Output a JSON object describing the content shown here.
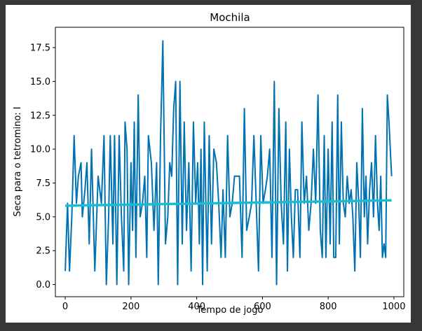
{
  "chart_data": {
    "type": "line",
    "title": "Mochila",
    "xlabel": "Tempo de jogo",
    "ylabel": "Seca para o tetromino: I",
    "xlim": [
      -30,
      1030
    ],
    "ylim": [
      -0.9,
      19.0
    ],
    "xticks": [
      0,
      200,
      400,
      600,
      800,
      1000
    ],
    "xtick_labels": [
      "0",
      "200",
      "400",
      "600",
      "800",
      "1000"
    ],
    "yticks": [
      0.0,
      2.5,
      5.0,
      7.5,
      10.0,
      12.5,
      15.0,
      17.5
    ],
    "ytick_labels": [
      "0.0",
      "2.5",
      "5.0",
      "7.5",
      "10.0",
      "12.5",
      "15.0",
      "17.5"
    ],
    "grid": false,
    "series": [
      {
        "color": "#0072b2",
        "x": [
          0,
          7,
          13,
          20,
          27,
          34,
          40,
          48,
          52,
          60,
          66,
          73,
          80,
          90,
          100,
          110,
          118,
          125,
          132,
          137,
          145,
          150,
          157,
          164,
          171,
          178,
          182,
          188,
          193,
          200,
          205,
          210,
          215,
          222,
          228,
          235,
          242,
          248,
          253,
          262,
          270,
          278,
          283,
          290,
          297,
          305,
          312,
          318,
          324,
          330,
          336,
          342,
          349,
          356,
          362,
          369,
          376,
          383,
          390,
          397,
          403,
          408,
          413,
          418,
          423,
          432,
          438,
          445,
          452,
          460,
          467,
          474,
          480,
          487,
          494,
          501,
          508,
          515,
          522,
          530,
          538,
          545,
          552,
          560,
          567,
          574,
          581,
          588,
          595,
          602,
          609,
          615,
          622,
          629,
          636,
          643,
          650,
          657,
          664,
          671,
          676,
          682,
          688,
          694,
          700,
          707,
          714,
          720,
          727,
          734,
          741,
          748,
          755,
          762,
          769,
          776,
          782,
          788,
          793,
          800,
          806,
          812,
          817,
          823,
          829,
          834,
          840,
          846,
          852,
          858,
          864,
          870,
          875,
          881,
          887,
          893,
          898,
          904,
          910,
          915,
          920,
          926,
          932,
          938,
          944,
          950,
          955,
          960,
          965,
          970,
          975,
          980,
          985,
          993
        ],
        "values": [
          1,
          6,
          1,
          5,
          11,
          6,
          8,
          9,
          5,
          7,
          9,
          3,
          10,
          1,
          8,
          6,
          11,
          0,
          5,
          11,
          3,
          11,
          0,
          11,
          5,
          1,
          12,
          10,
          0,
          9,
          4,
          12,
          2,
          14,
          5,
          6,
          8,
          2,
          11,
          9,
          4,
          9,
          0,
          11,
          18,
          3,
          5,
          9,
          8,
          13,
          15,
          0,
          15,
          3,
          12,
          4,
          9,
          1,
          12,
          6,
          9,
          3,
          10,
          0,
          12,
          1,
          11,
          3,
          10,
          9,
          6,
          2,
          7,
          2,
          11,
          5,
          6,
          8,
          8,
          8,
          2,
          13,
          4,
          5,
          6,
          11,
          6,
          1,
          11,
          6,
          7,
          8,
          10,
          2,
          15,
          0,
          13,
          6,
          3,
          12,
          1,
          10,
          5,
          2,
          7,
          7,
          2,
          12,
          6,
          8,
          4,
          6,
          10,
          6,
          14,
          4,
          2,
          11,
          2,
          10,
          3,
          12,
          2,
          2,
          14,
          3,
          12,
          6,
          5,
          8,
          6,
          7,
          5,
          1,
          9,
          6,
          2,
          13,
          5,
          8,
          3,
          7,
          9,
          5,
          11,
          6,
          4,
          8,
          2,
          3,
          2,
          14,
          12,
          8
        ]
      },
      {
        "color": "#17becf",
        "x": [
          0,
          993
        ],
        "values": [
          5.82,
          6.22
        ]
      }
    ]
  }
}
